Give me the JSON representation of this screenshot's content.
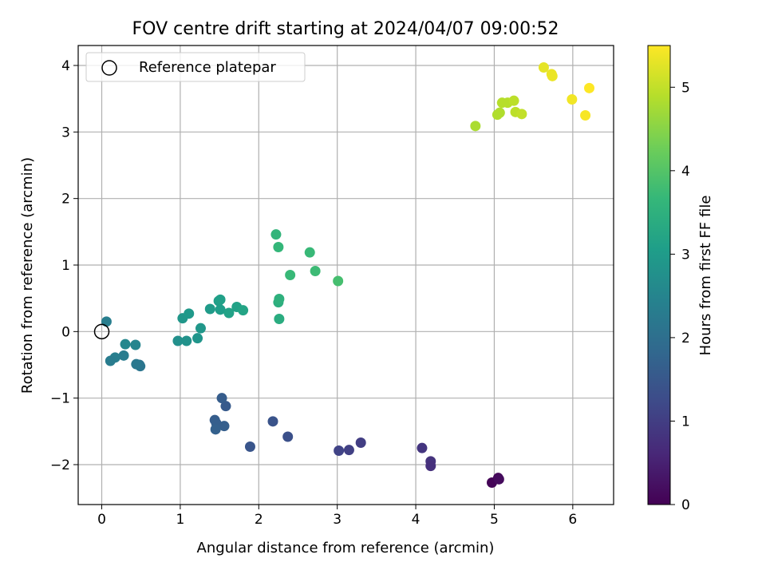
{
  "chart_data": {
    "type": "scatter",
    "title": "FOV centre drift starting at 2024/04/07 09:00:52",
    "xlabel": "Angular distance from reference (arcmin)",
    "ylabel": "Rotation from reference (arcmin)",
    "colorbar_label": "Hours from first FF file",
    "xlim": [
      -0.3,
      6.52
    ],
    "ylim": [
      -2.6,
      4.3
    ],
    "clim": [
      0,
      5.5
    ],
    "x_ticks": [
      0,
      1,
      2,
      3,
      4,
      5,
      6
    ],
    "y_ticks": [
      -2,
      -1,
      0,
      1,
      2,
      3,
      4
    ],
    "colorbar_ticks": [
      0,
      1,
      2,
      3,
      4,
      5
    ],
    "grid": true,
    "legend": {
      "placement": "top-left",
      "entries": [
        "Reference platepar"
      ]
    },
    "reference_point": {
      "x": 0,
      "y": 0,
      "label": "Reference platepar"
    },
    "colormap": "viridis",
    "points": [
      {
        "x": 4.97,
        "y": -2.27,
        "h": 0.05
      },
      {
        "x": 5.05,
        "y": -2.2,
        "h": 0.1
      },
      {
        "x": 5.06,
        "y": -2.22,
        "h": 0.15
      },
      {
        "x": 4.08,
        "y": -1.75,
        "h": 0.85
      },
      {
        "x": 4.19,
        "y": -1.95,
        "h": 0.8
      },
      {
        "x": 4.19,
        "y": -2.02,
        "h": 0.75
      },
      {
        "x": 3.3,
        "y": -1.67,
        "h": 1.0
      },
      {
        "x": 3.15,
        "y": -1.78,
        "h": 1.05
      },
      {
        "x": 3.02,
        "y": -1.79,
        "h": 1.1
      },
      {
        "x": 2.37,
        "y": -1.58,
        "h": 1.35
      },
      {
        "x": 2.18,
        "y": -1.35,
        "h": 1.4
      },
      {
        "x": 1.89,
        "y": -1.73,
        "h": 1.45
      },
      {
        "x": 1.58,
        "y": -1.12,
        "h": 1.55
      },
      {
        "x": 1.53,
        "y": -1.0,
        "h": 1.6
      },
      {
        "x": 1.44,
        "y": -1.33,
        "h": 1.6
      },
      {
        "x": 1.46,
        "y": -1.38,
        "h": 1.65
      },
      {
        "x": 1.56,
        "y": -1.42,
        "h": 1.65
      },
      {
        "x": 1.45,
        "y": -1.47,
        "h": 1.7
      },
      {
        "x": 0.48,
        "y": -0.5,
        "h": 2.1
      },
      {
        "x": 0.49,
        "y": -0.52,
        "h": 2.15
      },
      {
        "x": 0.44,
        "y": -0.49,
        "h": 2.2
      },
      {
        "x": 0.28,
        "y": -0.36,
        "h": 2.3
      },
      {
        "x": 0.17,
        "y": -0.39,
        "h": 2.35
      },
      {
        "x": 0.11,
        "y": -0.44,
        "h": 2.3
      },
      {
        "x": 0.43,
        "y": -0.2,
        "h": 2.5
      },
      {
        "x": 0.3,
        "y": -0.19,
        "h": 2.55
      },
      {
        "x": 0.06,
        "y": 0.15,
        "h": 2.35
      },
      {
        "x": 0.97,
        "y": -0.14,
        "h": 2.75
      },
      {
        "x": 1.08,
        "y": -0.14,
        "h": 2.8
      },
      {
        "x": 1.22,
        "y": -0.1,
        "h": 2.85
      },
      {
        "x": 1.26,
        "y": 0.05,
        "h": 2.9
      },
      {
        "x": 1.03,
        "y": 0.2,
        "h": 2.9
      },
      {
        "x": 1.11,
        "y": 0.27,
        "h": 2.95
      },
      {
        "x": 1.38,
        "y": 0.34,
        "h": 3.0
      },
      {
        "x": 1.51,
        "y": 0.33,
        "h": 3.05
      },
      {
        "x": 1.49,
        "y": 0.46,
        "h": 3.05
      },
      {
        "x": 1.51,
        "y": 0.48,
        "h": 3.1
      },
      {
        "x": 1.62,
        "y": 0.28,
        "h": 3.15
      },
      {
        "x": 1.72,
        "y": 0.37,
        "h": 3.15
      },
      {
        "x": 1.8,
        "y": 0.32,
        "h": 3.2
      },
      {
        "x": 2.26,
        "y": 0.19,
        "h": 3.4
      },
      {
        "x": 2.25,
        "y": 0.44,
        "h": 3.45
      },
      {
        "x": 2.26,
        "y": 0.49,
        "h": 3.5
      },
      {
        "x": 2.4,
        "y": 0.85,
        "h": 3.7
      },
      {
        "x": 2.72,
        "y": 0.91,
        "h": 3.75
      },
      {
        "x": 3.01,
        "y": 0.76,
        "h": 3.85
      },
      {
        "x": 2.65,
        "y": 1.19,
        "h": 3.7
      },
      {
        "x": 2.25,
        "y": 1.27,
        "h": 3.65
      },
      {
        "x": 2.22,
        "y": 1.46,
        "h": 3.6
      },
      {
        "x": 4.76,
        "y": 3.09,
        "h": 4.8
      },
      {
        "x": 5.04,
        "y": 3.26,
        "h": 4.85
      },
      {
        "x": 5.07,
        "y": 3.29,
        "h": 4.85
      },
      {
        "x": 5.1,
        "y": 3.44,
        "h": 4.9
      },
      {
        "x": 5.17,
        "y": 3.44,
        "h": 4.9
      },
      {
        "x": 5.25,
        "y": 3.47,
        "h": 4.95
      },
      {
        "x": 5.27,
        "y": 3.3,
        "h": 4.95
      },
      {
        "x": 5.35,
        "y": 3.27,
        "h": 5.0
      },
      {
        "x": 5.63,
        "y": 3.97,
        "h": 5.3
      },
      {
        "x": 5.73,
        "y": 3.87,
        "h": 5.35
      },
      {
        "x": 5.74,
        "y": 3.84,
        "h": 5.35
      },
      {
        "x": 5.99,
        "y": 3.49,
        "h": 5.4
      },
      {
        "x": 6.16,
        "y": 3.25,
        "h": 5.45
      },
      {
        "x": 6.21,
        "y": 3.66,
        "h": 5.5
      }
    ]
  }
}
